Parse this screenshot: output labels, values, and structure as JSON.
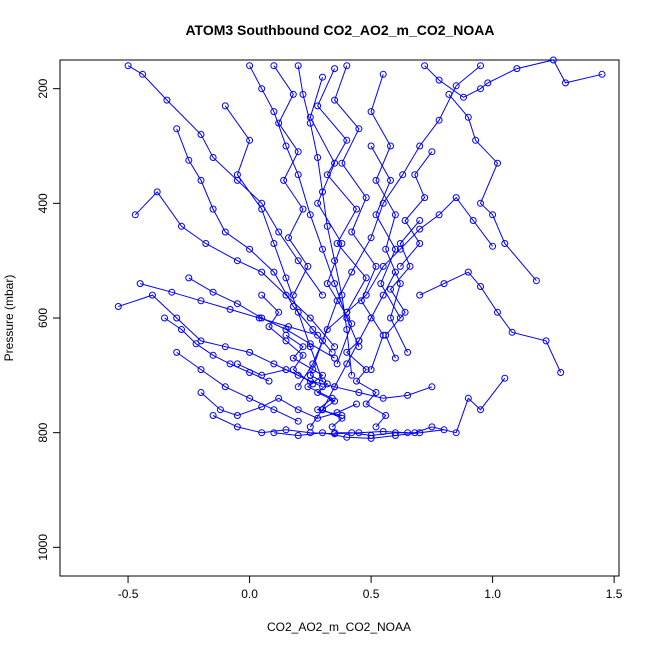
{
  "chart_data": {
    "type": "scatter",
    "title": "ATOM3 Southbound CO2_AO2_m_CO2_NOAA",
    "xlabel": "CO2_AO2_m_CO2_NOAA",
    "ylabel": "Pressure (mbar)",
    "xlim": [
      -0.78,
      1.52
    ],
    "ylim": [
      1050,
      150
    ],
    "x_ticks": [
      -0.5,
      0.0,
      0.5,
      1.0,
      1.5
    ],
    "x_tick_labels": [
      "-0.5",
      "0.0",
      "0.5",
      "1.0",
      "1.5"
    ],
    "y_ticks": [
      200,
      400,
      600,
      800,
      1000
    ],
    "y_tick_labels": [
      "200",
      "400",
      "600",
      "800",
      "1000"
    ],
    "y_reversed": true,
    "grid": false,
    "color": "#0000ff",
    "marker": "open-circle",
    "series": [
      {
        "x": [
          1.45,
          1.3,
          1.25,
          1.1,
          0.98,
          0.95,
          0.88,
          0.78,
          0.72
        ],
        "y": [
          175,
          190,
          150,
          165,
          190,
          200,
          215,
          185,
          160
        ]
      },
      {
        "x": [
          1.28,
          1.22,
          1.08,
          1.02,
          0.95,
          0.9,
          0.8,
          0.7
        ],
        "y": [
          695,
          640,
          625,
          590,
          545,
          520,
          540,
          560
        ]
      },
      {
        "x": [
          1.18,
          1.05,
          1.0,
          0.95,
          1.02,
          0.93,
          0.9,
          0.82
        ],
        "y": [
          535,
          470,
          420,
          400,
          330,
          290,
          250,
          210
        ]
      },
      {
        "x": [
          1.0,
          0.92,
          0.85,
          0.78,
          0.7,
          0.62,
          0.55,
          0.48,
          0.4,
          0.32,
          0.26,
          0.2
        ],
        "y": [
          475,
          430,
          390,
          420,
          445,
          480,
          510,
          560,
          590,
          620,
          680,
          720
        ]
      },
      {
        "x": [
          1.05,
          0.95,
          0.9,
          0.85,
          0.75,
          0.68,
          0.6,
          0.5,
          0.42,
          0.35
        ],
        "y": [
          705,
          760,
          740,
          800,
          790,
          800,
          800,
          805,
          800,
          800
        ]
      },
      {
        "x": [
          0.95,
          0.85,
          0.78,
          0.7,
          0.63,
          0.55,
          0.5,
          0.42,
          0.36,
          0.3,
          0.25
        ],
        "y": [
          160,
          195,
          255,
          300,
          350,
          400,
          460,
          520,
          570,
          640,
          700
        ]
      },
      {
        "x": [
          -0.54,
          -0.4,
          -0.3,
          -0.2,
          -0.1,
          0.0,
          0.1,
          0.2,
          0.3
        ],
        "y": [
          580,
          560,
          600,
          640,
          650,
          660,
          680,
          700,
          720
        ]
      },
      {
        "x": [
          -0.47,
          -0.38,
          -0.28,
          -0.18,
          -0.05,
          0.05,
          0.15,
          0.25,
          0.35
        ],
        "y": [
          420,
          380,
          440,
          470,
          500,
          520,
          560,
          600,
          650
        ]
      },
      {
        "x": [
          -0.5,
          -0.44,
          -0.34,
          -0.2,
          -0.15,
          -0.05,
          0.05,
          0.12,
          0.2,
          0.3
        ],
        "y": [
          160,
          175,
          220,
          280,
          320,
          360,
          400,
          450,
          500,
          560
        ]
      },
      {
        "x": [
          -0.3,
          -0.25,
          -0.2,
          -0.15,
          -0.1,
          0.0,
          0.1,
          0.18,
          0.26,
          0.34
        ],
        "y": [
          270,
          325,
          360,
          410,
          450,
          480,
          520,
          580,
          620,
          660
        ]
      },
      {
        "x": [
          0.0,
          0.05,
          0.1,
          0.15,
          0.2,
          0.25,
          0.3,
          0.35,
          0.4,
          0.45
        ],
        "y": [
          160,
          200,
          240,
          300,
          350,
          420,
          480,
          540,
          600,
          650
        ]
      },
      {
        "x": [
          0.2,
          0.22,
          0.25,
          0.28,
          0.3,
          0.32,
          0.35,
          0.38,
          0.4,
          0.42
        ],
        "y": [
          160,
          210,
          260,
          320,
          380,
          440,
          500,
          560,
          620,
          700
        ]
      },
      {
        "x": [
          0.4,
          0.35,
          0.45,
          0.38,
          0.48,
          0.42,
          0.52,
          0.46,
          0.55,
          0.5
        ],
        "y": [
          160,
          220,
          270,
          330,
          390,
          450,
          510,
          570,
          630,
          690
        ]
      },
      {
        "x": [
          0.55,
          0.5,
          0.58,
          0.52,
          0.6,
          0.56,
          0.62,
          0.58,
          0.65
        ],
        "y": [
          175,
          240,
          300,
          360,
          420,
          480,
          540,
          600,
          660
        ]
      },
      {
        "x": [
          -0.1,
          0.0,
          -0.05,
          0.05,
          0.1,
          0.15,
          0.2,
          0.25,
          0.3
        ],
        "y": [
          230,
          290,
          350,
          410,
          470,
          530,
          590,
          650,
          710
        ]
      },
      {
        "x": [
          0.3,
          0.25,
          0.35,
          0.28,
          0.38,
          0.32,
          0.42,
          0.36
        ],
        "y": [
          180,
          250,
          330,
          400,
          470,
          540,
          610,
          680
        ]
      },
      {
        "x": [
          -0.2,
          -0.12,
          -0.05,
          0.05,
          0.12,
          0.2,
          0.28,
          0.36,
          0.44
        ],
        "y": [
          730,
          760,
          770,
          755,
          740,
          760,
          775,
          765,
          750
        ]
      },
      {
        "x": [
          -0.15,
          -0.05,
          0.05,
          0.15,
          0.25,
          0.35,
          0.45,
          0.55,
          0.65
        ],
        "y": [
          770,
          790,
          800,
          795,
          800,
          802,
          800,
          798,
          800
        ]
      },
      {
        "x": [
          0.1,
          0.2,
          0.3,
          0.4,
          0.5,
          0.6,
          0.7,
          0.8
        ],
        "y": [
          800,
          805,
          800,
          808,
          810,
          805,
          800,
          795
        ]
      },
      {
        "x": [
          -0.05,
          0.05,
          0.15,
          0.25,
          0.35,
          0.45,
          0.55,
          0.65,
          0.75
        ],
        "y": [
          680,
          700,
          690,
          710,
          720,
          730,
          740,
          735,
          720
        ]
      },
      {
        "x": [
          0.15,
          0.22,
          0.18,
          0.26,
          0.3,
          0.24,
          0.34,
          0.28,
          0.38
        ],
        "y": [
          630,
          650,
          670,
          690,
          700,
          720,
          740,
          760,
          770
        ]
      },
      {
        "x": [
          0.45,
          0.4,
          0.48,
          0.44,
          0.52,
          0.48,
          0.56,
          0.52
        ],
        "y": [
          640,
          660,
          690,
          710,
          730,
          750,
          770,
          790
        ]
      },
      {
        "x": [
          -0.25,
          -0.15,
          -0.05,
          0.05,
          0.15,
          0.25,
          0.35
        ],
        "y": [
          530,
          555,
          575,
          600,
          620,
          645,
          670
        ]
      },
      {
        "x": [
          0.6,
          0.55,
          0.5,
          0.45,
          0.4,
          0.35,
          0.3,
          0.25
        ],
        "y": [
          520,
          560,
          600,
          640,
          680,
          720,
          760,
          790
        ]
      },
      {
        "x": [
          0.1,
          0.18,
          0.12,
          0.2,
          0.14,
          0.22,
          0.16,
          0.24,
          0.18
        ],
        "y": [
          160,
          210,
          260,
          310,
          360,
          410,
          460,
          510,
          560
        ]
      },
      {
        "x": [
          0.35,
          0.28,
          0.4,
          0.32,
          0.44,
          0.36,
          0.48,
          0.4
        ],
        "y": [
          165,
          230,
          290,
          350,
          410,
          470,
          530,
          590
        ]
      },
      {
        "x": [
          0.7,
          0.62,
          0.66,
          0.58,
          0.64,
          0.56,
          0.6
        ],
        "y": [
          430,
          470,
          510,
          550,
          590,
          630,
          670
        ]
      },
      {
        "x": [
          -0.35,
          -0.28,
          -0.22,
          -0.15,
          -0.08,
          0.0,
          0.08
        ],
        "y": [
          600,
          620,
          645,
          665,
          680,
          695,
          710
        ]
      },
      {
        "x": [
          0.05,
          0.12,
          0.08,
          0.15,
          0.22,
          0.18,
          0.26
        ],
        "y": [
          560,
          590,
          615,
          640,
          665,
          690,
          715
        ]
      },
      {
        "x": [
          0.5,
          0.58,
          0.52,
          0.6,
          0.54,
          0.62
        ],
        "y": [
          300,
          360,
          420,
          480,
          540,
          600
        ]
      },
      {
        "x": [
          0.25,
          0.32,
          0.28,
          0.35,
          0.3,
          0.38,
          0.34
        ],
        "y": [
          700,
          715,
          730,
          745,
          760,
          775,
          790
        ]
      },
      {
        "x": [
          -0.3,
          -0.2,
          -0.1,
          0.0,
          0.1,
          0.2
        ],
        "y": [
          660,
          690,
          720,
          740,
          760,
          780
        ]
      },
      {
        "x": [
          0.75,
          0.68,
          0.72,
          0.64,
          0.7,
          0.62
        ],
        "y": [
          310,
          350,
          390,
          430,
          470,
          510
        ]
      },
      {
        "x": [
          -0.45,
          -0.32,
          -0.2,
          -0.08,
          0.04,
          0.16,
          0.28
        ],
        "y": [
          540,
          555,
          570,
          585,
          600,
          615,
          630
        ]
      }
    ]
  }
}
